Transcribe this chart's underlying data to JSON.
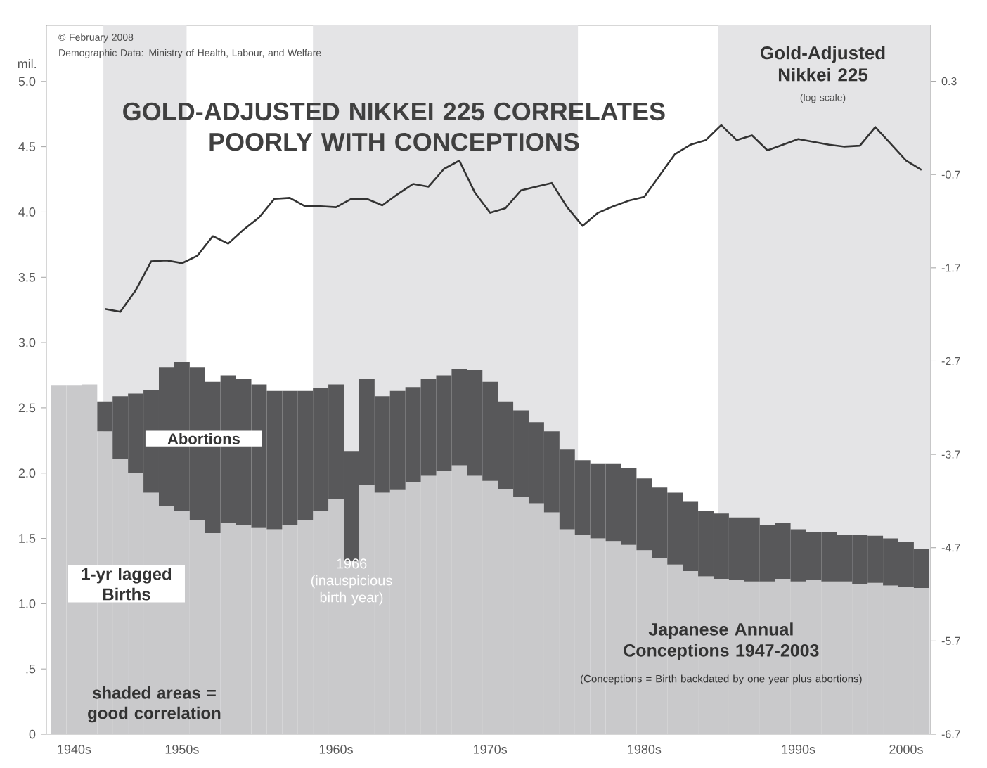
{
  "chart_data": {
    "type": "bar",
    "stacked": true,
    "title": "GOLD-ADJUSTED NIKKEI 225 CORRELATES POORLY WITH CONCEPTIONS",
    "ylabel": "mil.",
    "categories": [
      null,
      "1940s",
      null,
      null,
      null,
      null,
      null,
      null,
      "1950s",
      null,
      null,
      null,
      null,
      null,
      null,
      null,
      null,
      null,
      "1960s",
      null,
      null,
      null,
      null,
      null,
      null,
      null,
      null,
      null,
      "1970s",
      null,
      null,
      null,
      null,
      null,
      null,
      null,
      null,
      null,
      "1980s",
      null,
      null,
      null,
      null,
      null,
      null,
      null,
      null,
      null,
      "1990s",
      null,
      null,
      null,
      null,
      null,
      null,
      "2000s",
      null
    ],
    "series": [
      {
        "name": "1-yr lagged Births",
        "color": "#c9c9cb",
        "values": [
          2.67,
          2.67,
          2.68,
          2.32,
          2.11,
          2.0,
          1.85,
          1.75,
          1.71,
          1.64,
          1.54,
          1.62,
          1.6,
          1.58,
          1.57,
          1.6,
          1.64,
          1.71,
          1.8,
          1.33,
          1.91,
          1.85,
          1.87,
          1.93,
          1.98,
          2.02,
          2.06,
          1.98,
          1.94,
          1.88,
          1.82,
          1.77,
          1.7,
          1.57,
          1.53,
          1.5,
          1.48,
          1.45,
          1.41,
          1.35,
          1.3,
          1.25,
          1.21,
          1.19,
          1.18,
          1.17,
          1.17,
          1.19,
          1.17,
          1.18,
          1.17,
          1.17,
          1.15,
          1.16,
          1.14,
          1.13,
          1.12
        ]
      },
      {
        "name": "Abortions",
        "color": "#58585a",
        "values": [
          null,
          null,
          null,
          0.23,
          0.48,
          0.61,
          0.79,
          1.06,
          1.14,
          1.17,
          1.16,
          1.13,
          1.12,
          1.1,
          1.06,
          1.03,
          0.99,
          0.94,
          0.88,
          0.84,
          0.81,
          0.74,
          0.76,
          0.73,
          0.74,
          0.73,
          0.74,
          0.81,
          0.76,
          0.67,
          0.66,
          0.62,
          0.62,
          0.61,
          0.57,
          0.57,
          0.59,
          0.59,
          0.55,
          0.54,
          0.55,
          0.53,
          0.5,
          0.5,
          0.48,
          0.49,
          0.43,
          0.43,
          0.4,
          0.37,
          0.38,
          0.36,
          0.38,
          0.36,
          0.36,
          0.34,
          0.3
        ]
      },
      {
        "name": "Gold-Adjusted Nikkei 225",
        "type": "line",
        "axis": "y2",
        "color": "#333333",
        "values": [
          null,
          null,
          null,
          -2.14,
          -2.17,
          -1.94,
          -1.63,
          -1.62,
          -1.65,
          -1.57,
          -1.36,
          -1.44,
          -1.29,
          -1.16,
          -0.96,
          -0.95,
          -1.04,
          -1.04,
          -1.05,
          -0.96,
          -0.96,
          -1.03,
          -0.91,
          -0.8,
          -0.83,
          -0.64,
          -0.55,
          -0.89,
          -1.11,
          -1.06,
          -0.87,
          -0.83,
          -0.79,
          -1.05,
          -1.25,
          -1.11,
          -1.04,
          -0.98,
          -0.94,
          -0.71,
          -0.48,
          -0.38,
          -0.33,
          -0.17,
          -0.33,
          -0.28,
          -0.44,
          -0.38,
          -0.32,
          -0.35,
          -0.38,
          -0.4,
          -0.39,
          -0.19,
          -0.37,
          -0.55,
          -0.65
        ]
      }
    ],
    "ylim": [
      0,
      5.43
    ],
    "yticks": [
      0,
      {
        "value": 0.5,
        "label": ".5"
      },
      {
        "value": 1,
        "label": "1.0"
      },
      1.5,
      {
        "value": 2,
        "label": "2.0"
      },
      2.5,
      {
        "value": 3,
        "label": "3.0"
      },
      3.5,
      {
        "value": 4,
        "label": "4.0"
      },
      4.5,
      {
        "value": 5,
        "label": "5.0"
      }
    ],
    "y2lim": [
      -6.7,
      0.9
    ],
    "y2ticks": [
      -6.7,
      -5.7,
      -4.7,
      -3.7,
      -2.7,
      -1.7,
      -0.7,
      0.3
    ],
    "annotations": [
      "© February 2008",
      "Demographic Data: Ministry of Health, Labour, and Welfare",
      "(log scale)",
      "1966 (inauspicious birth year)",
      "Japanese Annual Conceptions 1947-2003",
      "(Conceptions = Birth backdated by one year plus abortions)",
      "shaded areas = good correlation"
    ]
  }
}
